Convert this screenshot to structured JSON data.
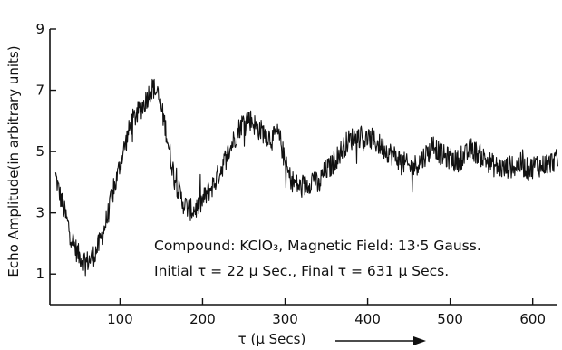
{
  "chart_data": {
    "type": "line",
    "title": "",
    "xlabel": "τ (μ Secs)",
    "ylabel": "Echo Amplitude(in arbitrary units)",
    "xlim": [
      15,
      630
    ],
    "ylim": [
      0,
      9
    ],
    "x_ticks": [
      100,
      200,
      300,
      400,
      500,
      600
    ],
    "x_tick_labels": [
      "100",
      "200",
      "300",
      "400",
      "500",
      "600"
    ],
    "y_ticks": [
      1,
      3,
      5,
      7,
      9
    ],
    "y_tick_labels": [
      "1",
      "3",
      "5",
      "7",
      "9"
    ],
    "grid": false,
    "x_axis_arrow": true,
    "line_color": "#111111",
    "annotations": [
      "Compound: KClO₃, Magnetic Field: 13·5 Gauss.",
      "Initial τ = 22 μ Sec., Final τ = 631 μ Secs."
    ],
    "series": [
      {
        "x": [
          22,
          25,
          30,
          35,
          40,
          45,
          50,
          55,
          60,
          65,
          70,
          75,
          80,
          85,
          90,
          95,
          100,
          105,
          110,
          115,
          120,
          125,
          130,
          135,
          140,
          145,
          150,
          155,
          160,
          165,
          170,
          175,
          180,
          185,
          190,
          195,
          200,
          205,
          210,
          215,
          220,
          225,
          230,
          235,
          240,
          245,
          250,
          255,
          260,
          265,
          270,
          275,
          280,
          285,
          290,
          295,
          300,
          305,
          310,
          315,
          320,
          325,
          330,
          335,
          340,
          345,
          350,
          355,
          360,
          365,
          370,
          375,
          380,
          385,
          390,
          395,
          400,
          405,
          410,
          415,
          420,
          425,
          430,
          435,
          440,
          445,
          450,
          455,
          460,
          465,
          470,
          475,
          480,
          485,
          490,
          495,
          500,
          505,
          510,
          515,
          520,
          525,
          530,
          535,
          540,
          545,
          550,
          555,
          560,
          565,
          570,
          575,
          580,
          585,
          590,
          595,
          600,
          605,
          610,
          615,
          620,
          625,
          631
        ],
        "y": [
          4.2,
          3.8,
          3.3,
          2.8,
          2.3,
          1.9,
          1.6,
          1.5,
          1.4,
          1.5,
          1.7,
          2.0,
          2.4,
          2.9,
          3.5,
          4.0,
          4.6,
          5.1,
          5.6,
          6.0,
          6.2,
          6.4,
          6.6,
          6.9,
          7.1,
          6.9,
          6.4,
          5.8,
          5.0,
          4.3,
          3.8,
          3.4,
          3.2,
          3.1,
          3.1,
          3.2,
          3.4,
          3.6,
          3.8,
          4.0,
          4.3,
          4.6,
          4.9,
          5.2,
          5.5,
          5.8,
          6.0,
          6.1,
          6.0,
          5.8,
          5.7,
          5.6,
          5.5,
          5.4,
          5.6,
          5.3,
          4.6,
          4.2,
          4.0,
          3.9,
          3.8,
          3.9,
          4.0,
          4.2,
          3.8,
          4.2,
          4.4,
          4.5,
          4.7,
          4.9,
          5.1,
          5.3,
          5.4,
          5.5,
          5.5,
          5.4,
          5.4,
          5.4,
          5.3,
          5.2,
          5.1,
          5.0,
          4.9,
          4.8,
          4.7,
          4.6,
          4.5,
          4.5,
          4.6,
          4.7,
          4.9,
          5.0,
          5.3,
          5.0,
          4.9,
          4.8,
          4.8,
          4.7,
          4.7,
          4.8,
          4.9,
          5.1,
          5.0,
          4.9,
          4.8,
          4.7,
          4.6,
          4.5,
          4.5,
          4.4,
          4.5,
          4.5,
          4.5,
          4.6,
          4.5,
          4.4,
          4.5,
          4.6,
          4.5,
          4.6,
          4.6,
          4.7,
          4.7
        ]
      }
    ]
  }
}
